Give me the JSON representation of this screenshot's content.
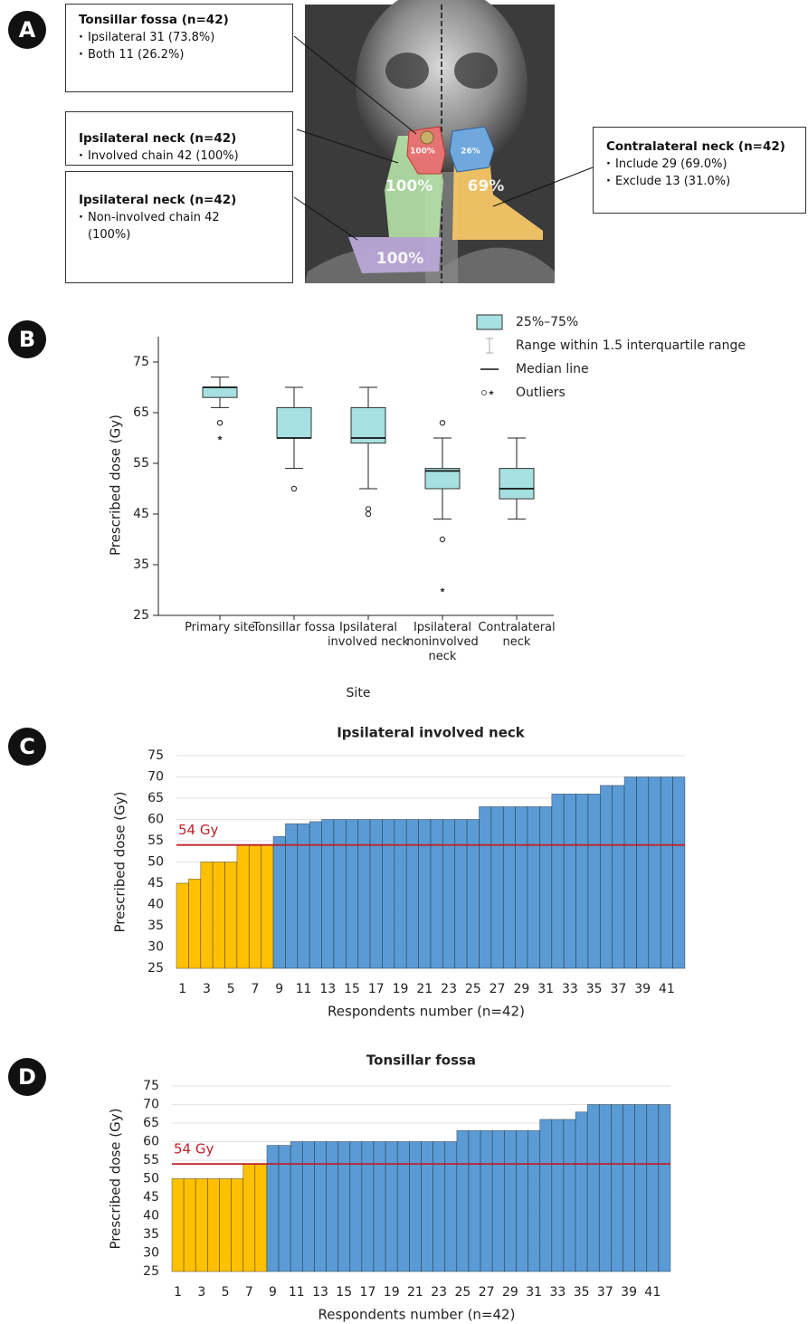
{
  "panel_a": {
    "label": "A",
    "boxes": [
      {
        "title": "Tonsillar fossa (n=42)",
        "items": [
          "Ipsilateral 31 (73.8%)",
          "Both 11 (26.2%)"
        ]
      },
      {
        "title": "Ipsilateral neck (n=42)",
        "items": [
          "Involved chain 42 (100%)"
        ]
      },
      {
        "title": "Ipsilateral neck (n=42)",
        "items": [
          "Non-involved chain 42 (100%)"
        ]
      },
      {
        "title": "Contralateral neck (n=42)",
        "items": [
          "Include 29 (69.0%)",
          "Exclude 13 (31.0%)"
        ]
      }
    ],
    "image_labels": [
      "100%",
      "26%",
      "100%",
      "69%",
      "100%"
    ]
  },
  "chart_data": [
    {
      "type": "box",
      "panel": "B",
      "xlabel": "Site",
      "ylabel": "Prescribed dose (Gy)",
      "categories": [
        "Primary site",
        "Tonsillar fossa",
        "Ipsilateral involved neck",
        "Ipsilateral noninvolved neck",
        "Contralateral neck"
      ],
      "boxes": [
        {
          "whisker_low": 66,
          "q1": 68,
          "median": 70,
          "q3": 70,
          "whisker_high": 72,
          "outliers": [
            63
          ],
          "extremes": [
            60
          ]
        },
        {
          "whisker_low": 54,
          "q1": 60,
          "median": 60,
          "q3": 66,
          "whisker_high": 70,
          "outliers": [
            50
          ],
          "extremes": []
        },
        {
          "whisker_low": 50,
          "q1": 59,
          "median": 60,
          "q3": 66,
          "whisker_high": 70,
          "outliers": [
            46,
            45
          ],
          "extremes": []
        },
        {
          "whisker_low": 44,
          "q1": 50,
          "median": 53.5,
          "q3": 54,
          "whisker_high": 60,
          "outliers": [
            63,
            40
          ],
          "extremes": [
            30
          ]
        },
        {
          "whisker_low": 44,
          "q1": 48,
          "median": 50,
          "q3": 54,
          "whisker_high": 60,
          "outliers": [],
          "extremes": []
        }
      ],
      "box_color": "#a6e0e0",
      "legend": [
        "25%–75%",
        "Range within 1.5 interquartile range",
        "Median line",
        "Outliers"
      ],
      "ylim": [
        25,
        80
      ],
      "yticks": [
        25,
        35,
        45,
        55,
        65,
        75
      ]
    },
    {
      "type": "bar",
      "panel": "C",
      "title": "Ipsilateral involved neck",
      "xlabel": "Respondents number (n=42)",
      "ylabel": "Prescribed dose (Gy)",
      "categories": [
        1,
        null,
        3,
        null,
        5,
        null,
        7,
        null,
        9,
        null,
        11,
        null,
        13,
        null,
        15,
        null,
        17,
        null,
        19,
        null,
        21,
        null,
        23,
        null,
        25,
        null,
        27,
        null,
        29,
        null,
        31,
        null,
        33,
        null,
        35,
        null,
        37,
        null,
        39,
        null,
        41,
        null
      ],
      "values": [
        45,
        46,
        50,
        50,
        50,
        54,
        54,
        54,
        56,
        59,
        59,
        59.5,
        60,
        60,
        60,
        60,
        60,
        60,
        60,
        60,
        60,
        60,
        60,
        60,
        60,
        63,
        63,
        63,
        63,
        63,
        63,
        66,
        66,
        66,
        66,
        68,
        68,
        70,
        70,
        70,
        70,
        70
      ],
      "colors": [
        "#ffc000",
        "#ffc000",
        "#ffc000",
        "#ffc000",
        "#ffc000",
        "#ffc000",
        "#ffc000",
        "#ffc000",
        "#5b9bd5",
        "#5b9bd5",
        "#5b9bd5",
        "#5b9bd5",
        "#5b9bd5",
        "#5b9bd5",
        "#5b9bd5",
        "#5b9bd5",
        "#5b9bd5",
        "#5b9bd5",
        "#5b9bd5",
        "#5b9bd5",
        "#5b9bd5",
        "#5b9bd5",
        "#5b9bd5",
        "#5b9bd5",
        "#5b9bd5",
        "#5b9bd5",
        "#5b9bd5",
        "#5b9bd5",
        "#5b9bd5",
        "#5b9bd5",
        "#5b9bd5",
        "#5b9bd5",
        "#5b9bd5",
        "#5b9bd5",
        "#5b9bd5",
        "#5b9bd5",
        "#5b9bd5",
        "#5b9bd5",
        "#5b9bd5",
        "#5b9bd5",
        "#5b9bd5",
        "#5b9bd5"
      ],
      "ref_line": {
        "value": 54,
        "label": "54 Gy",
        "color": "#c0202a"
      },
      "ylim": [
        25,
        75
      ],
      "yticks": [
        25,
        30,
        35,
        40,
        45,
        50,
        55,
        60,
        65,
        70,
        75
      ],
      "grid": true
    },
    {
      "type": "bar",
      "panel": "D",
      "title": "Tonsillar fossa",
      "xlabel": "Respondents number (n=42)",
      "ylabel": "Prescribed dose (Gy)",
      "categories": [
        1,
        null,
        3,
        null,
        5,
        null,
        7,
        null,
        9,
        null,
        11,
        null,
        13,
        null,
        15,
        null,
        17,
        null,
        19,
        null,
        21,
        null,
        23,
        null,
        25,
        null,
        27,
        null,
        29,
        null,
        31,
        null,
        33,
        null,
        35,
        null,
        37,
        null,
        39,
        null,
        41,
        null
      ],
      "values": [
        50,
        50,
        50,
        50,
        50,
        50,
        54,
        54,
        59,
        59,
        60,
        60,
        60,
        60,
        60,
        60,
        60,
        60,
        60,
        60,
        60,
        60,
        60,
        60,
        63,
        63,
        63,
        63,
        63,
        63,
        63,
        66,
        66,
        66,
        68,
        70,
        70,
        70,
        70,
        70,
        70,
        70
      ],
      "colors": [
        "#ffc000",
        "#ffc000",
        "#ffc000",
        "#ffc000",
        "#ffc000",
        "#ffc000",
        "#ffc000",
        "#ffc000",
        "#5b9bd5",
        "#5b9bd5",
        "#5b9bd5",
        "#5b9bd5",
        "#5b9bd5",
        "#5b9bd5",
        "#5b9bd5",
        "#5b9bd5",
        "#5b9bd5",
        "#5b9bd5",
        "#5b9bd5",
        "#5b9bd5",
        "#5b9bd5",
        "#5b9bd5",
        "#5b9bd5",
        "#5b9bd5",
        "#5b9bd5",
        "#5b9bd5",
        "#5b9bd5",
        "#5b9bd5",
        "#5b9bd5",
        "#5b9bd5",
        "#5b9bd5",
        "#5b9bd5",
        "#5b9bd5",
        "#5b9bd5",
        "#5b9bd5",
        "#5b9bd5",
        "#5b9bd5",
        "#5b9bd5",
        "#5b9bd5",
        "#5b9bd5",
        "#5b9bd5",
        "#5b9bd5"
      ],
      "ref_line": {
        "value": 54,
        "label": "54 Gy",
        "color": "#c0202a"
      },
      "ylim": [
        25,
        75
      ],
      "yticks": [
        25,
        30,
        35,
        40,
        45,
        50,
        55,
        60,
        65,
        70,
        75
      ],
      "grid": true
    }
  ]
}
